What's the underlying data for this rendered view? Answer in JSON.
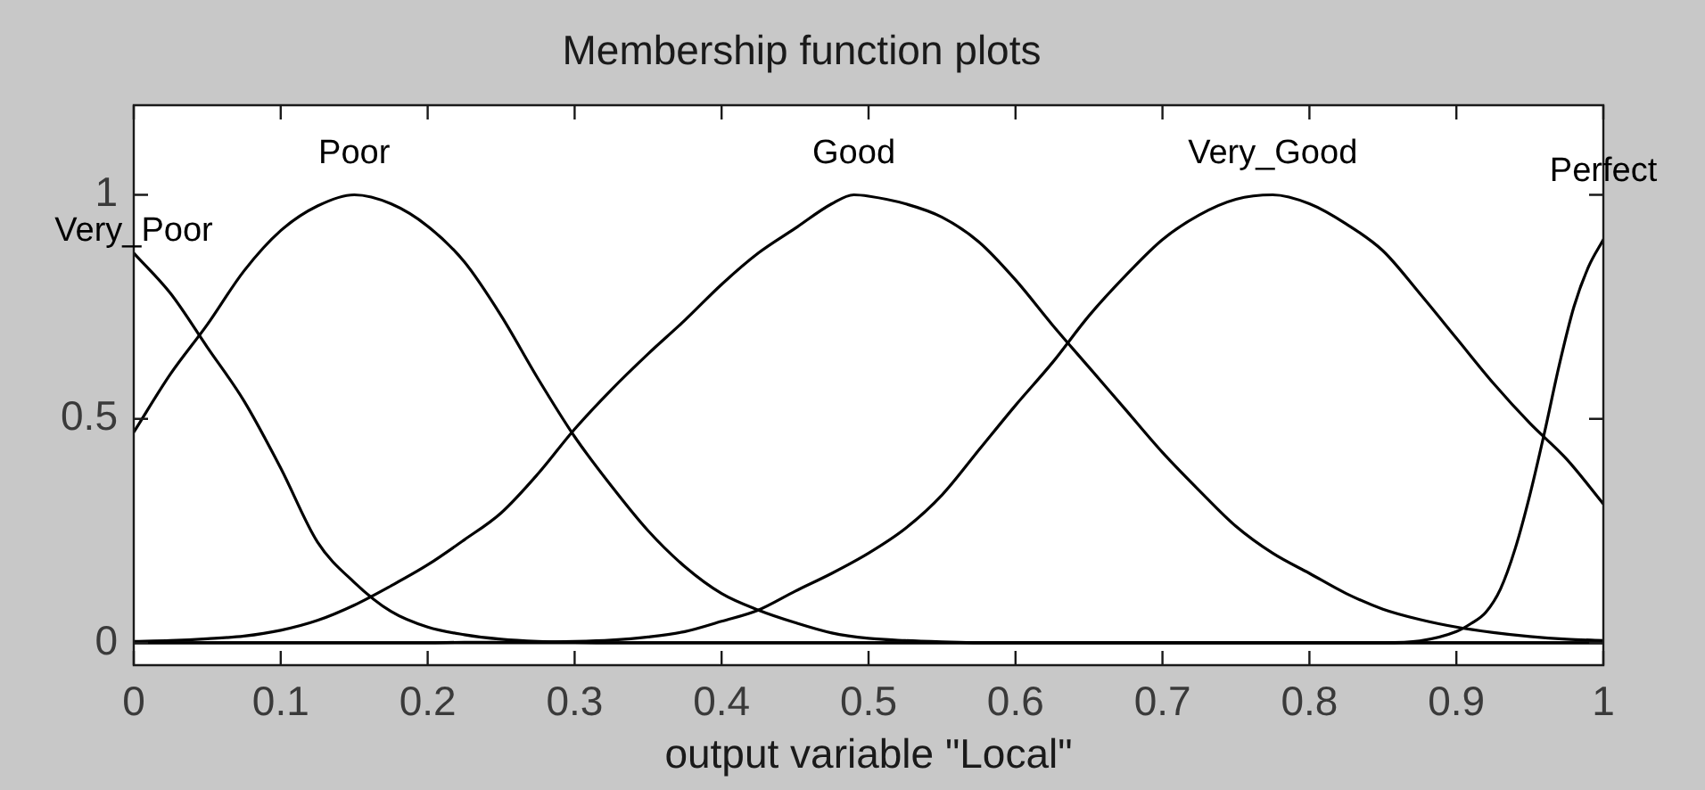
{
  "chart_data": {
    "type": "line",
    "title": "Membership function plots",
    "xlabel": "output variable \"Local\"",
    "x": [
      0,
      0.025,
      0.05,
      0.075,
      0.1,
      0.125,
      0.15,
      0.175,
      0.2,
      0.225,
      0.25,
      0.275,
      0.3,
      0.325,
      0.35,
      0.375,
      0.4,
      0.425,
      0.45,
      0.475,
      0.5,
      0.525,
      0.55,
      0.575,
      0.6,
      0.625,
      0.65,
      0.675,
      0.7,
      0.725,
      0.75,
      0.775,
      0.8,
      0.825,
      0.85,
      0.875,
      0.9,
      0.925,
      0.95,
      0.975,
      1
    ],
    "series": [
      {
        "name": "Very_Poor",
        "color": "#000000",
        "values": [
          0.87,
          0.78,
          0.66,
          0.54,
          0.39,
          0.225,
          0.135,
          0.07,
          0.035,
          0.018,
          0.008,
          0.003,
          0.001,
          0,
          0,
          0,
          0,
          0,
          0,
          0,
          0,
          0,
          0,
          0,
          0,
          0,
          0,
          0,
          0,
          0,
          0,
          0,
          0,
          0,
          0,
          0,
          0,
          0,
          0,
          0,
          0
        ]
      },
      {
        "name": "Poor",
        "color": "#000000",
        "values": [
          0.47,
          0.6,
          0.71,
          0.83,
          0.92,
          0.975,
          1,
          0.98,
          0.93,
          0.85,
          0.73,
          0.59,
          0.46,
          0.35,
          0.25,
          0.17,
          0.11,
          0.073,
          0.045,
          0.022,
          0.01,
          0.005,
          0.002,
          0,
          0,
          0,
          0,
          0,
          0,
          0,
          0,
          0,
          0,
          0,
          0,
          0,
          0,
          0,
          0,
          0,
          0
        ]
      },
      {
        "name": "Good",
        "color": "#000000",
        "x": [
          0,
          0.025,
          0.05,
          0.075,
          0.1,
          0.125,
          0.15,
          0.175,
          0.2,
          0.225,
          0.25,
          0.275,
          0.3,
          0.325,
          0.35,
          0.375,
          0.4,
          0.425,
          0.45,
          0.475,
          0.49,
          0.5,
          0.525,
          0.55,
          0.575,
          0.6,
          0.625,
          0.65,
          0.675,
          0.7,
          0.725,
          0.75,
          0.775,
          0.8,
          0.825,
          0.85,
          0.875,
          0.9,
          0.925,
          0.95,
          0.975,
          1
        ],
        "values": [
          0.003,
          0.005,
          0.009,
          0.015,
          0.028,
          0.05,
          0.084,
          0.127,
          0.174,
          0.23,
          0.29,
          0.377,
          0.477,
          0.565,
          0.645,
          0.72,
          0.8,
          0.87,
          0.925,
          0.98,
          1,
          0.997,
          0.98,
          0.95,
          0.895,
          0.81,
          0.71,
          0.615,
          0.52,
          0.425,
          0.34,
          0.26,
          0.2,
          0.155,
          0.11,
          0.075,
          0.052,
          0.035,
          0.023,
          0.014,
          0.008,
          0.005
        ]
      },
      {
        "name": "Very_Good",
        "color": "#000000",
        "values": [
          0,
          0,
          0,
          0,
          0,
          0,
          0,
          0,
          0,
          0.001,
          0.001,
          0.002,
          0.003,
          0.006,
          0.013,
          0.025,
          0.048,
          0.073,
          0.115,
          0.155,
          0.2,
          0.255,
          0.33,
          0.43,
          0.53,
          0.625,
          0.73,
          0.82,
          0.9,
          0.955,
          0.99,
          1,
          0.98,
          0.935,
          0.875,
          0.78,
          0.68,
          0.58,
          0.49,
          0.41,
          0.31
        ]
      },
      {
        "name": "Perfect",
        "color": "#000000",
        "x": [
          0,
          0.1,
          0.2,
          0.3,
          0.4,
          0.5,
          0.6,
          0.7,
          0.8,
          0.85,
          0.875,
          0.9,
          0.91,
          0.92,
          0.93,
          0.94,
          0.95,
          0.96,
          0.97,
          0.98,
          0.99,
          1
        ],
        "values": [
          0,
          0,
          0,
          0,
          0,
          0,
          0,
          0,
          0,
          0,
          0.004,
          0.025,
          0.043,
          0.068,
          0.12,
          0.21,
          0.33,
          0.47,
          0.62,
          0.75,
          0.84,
          0.9
        ]
      }
    ],
    "xlim": [
      0,
      1
    ],
    "ylim": [
      -0.05,
      1.2
    ],
    "xticks": [
      0,
      0.1,
      0.2,
      0.3,
      0.4,
      0.5,
      0.6,
      0.7,
      0.8,
      0.9,
      1
    ],
    "yticks": [
      0,
      0.5,
      1
    ],
    "grid": false,
    "legend": false,
    "marker": "none",
    "line_style": "solid"
  }
}
